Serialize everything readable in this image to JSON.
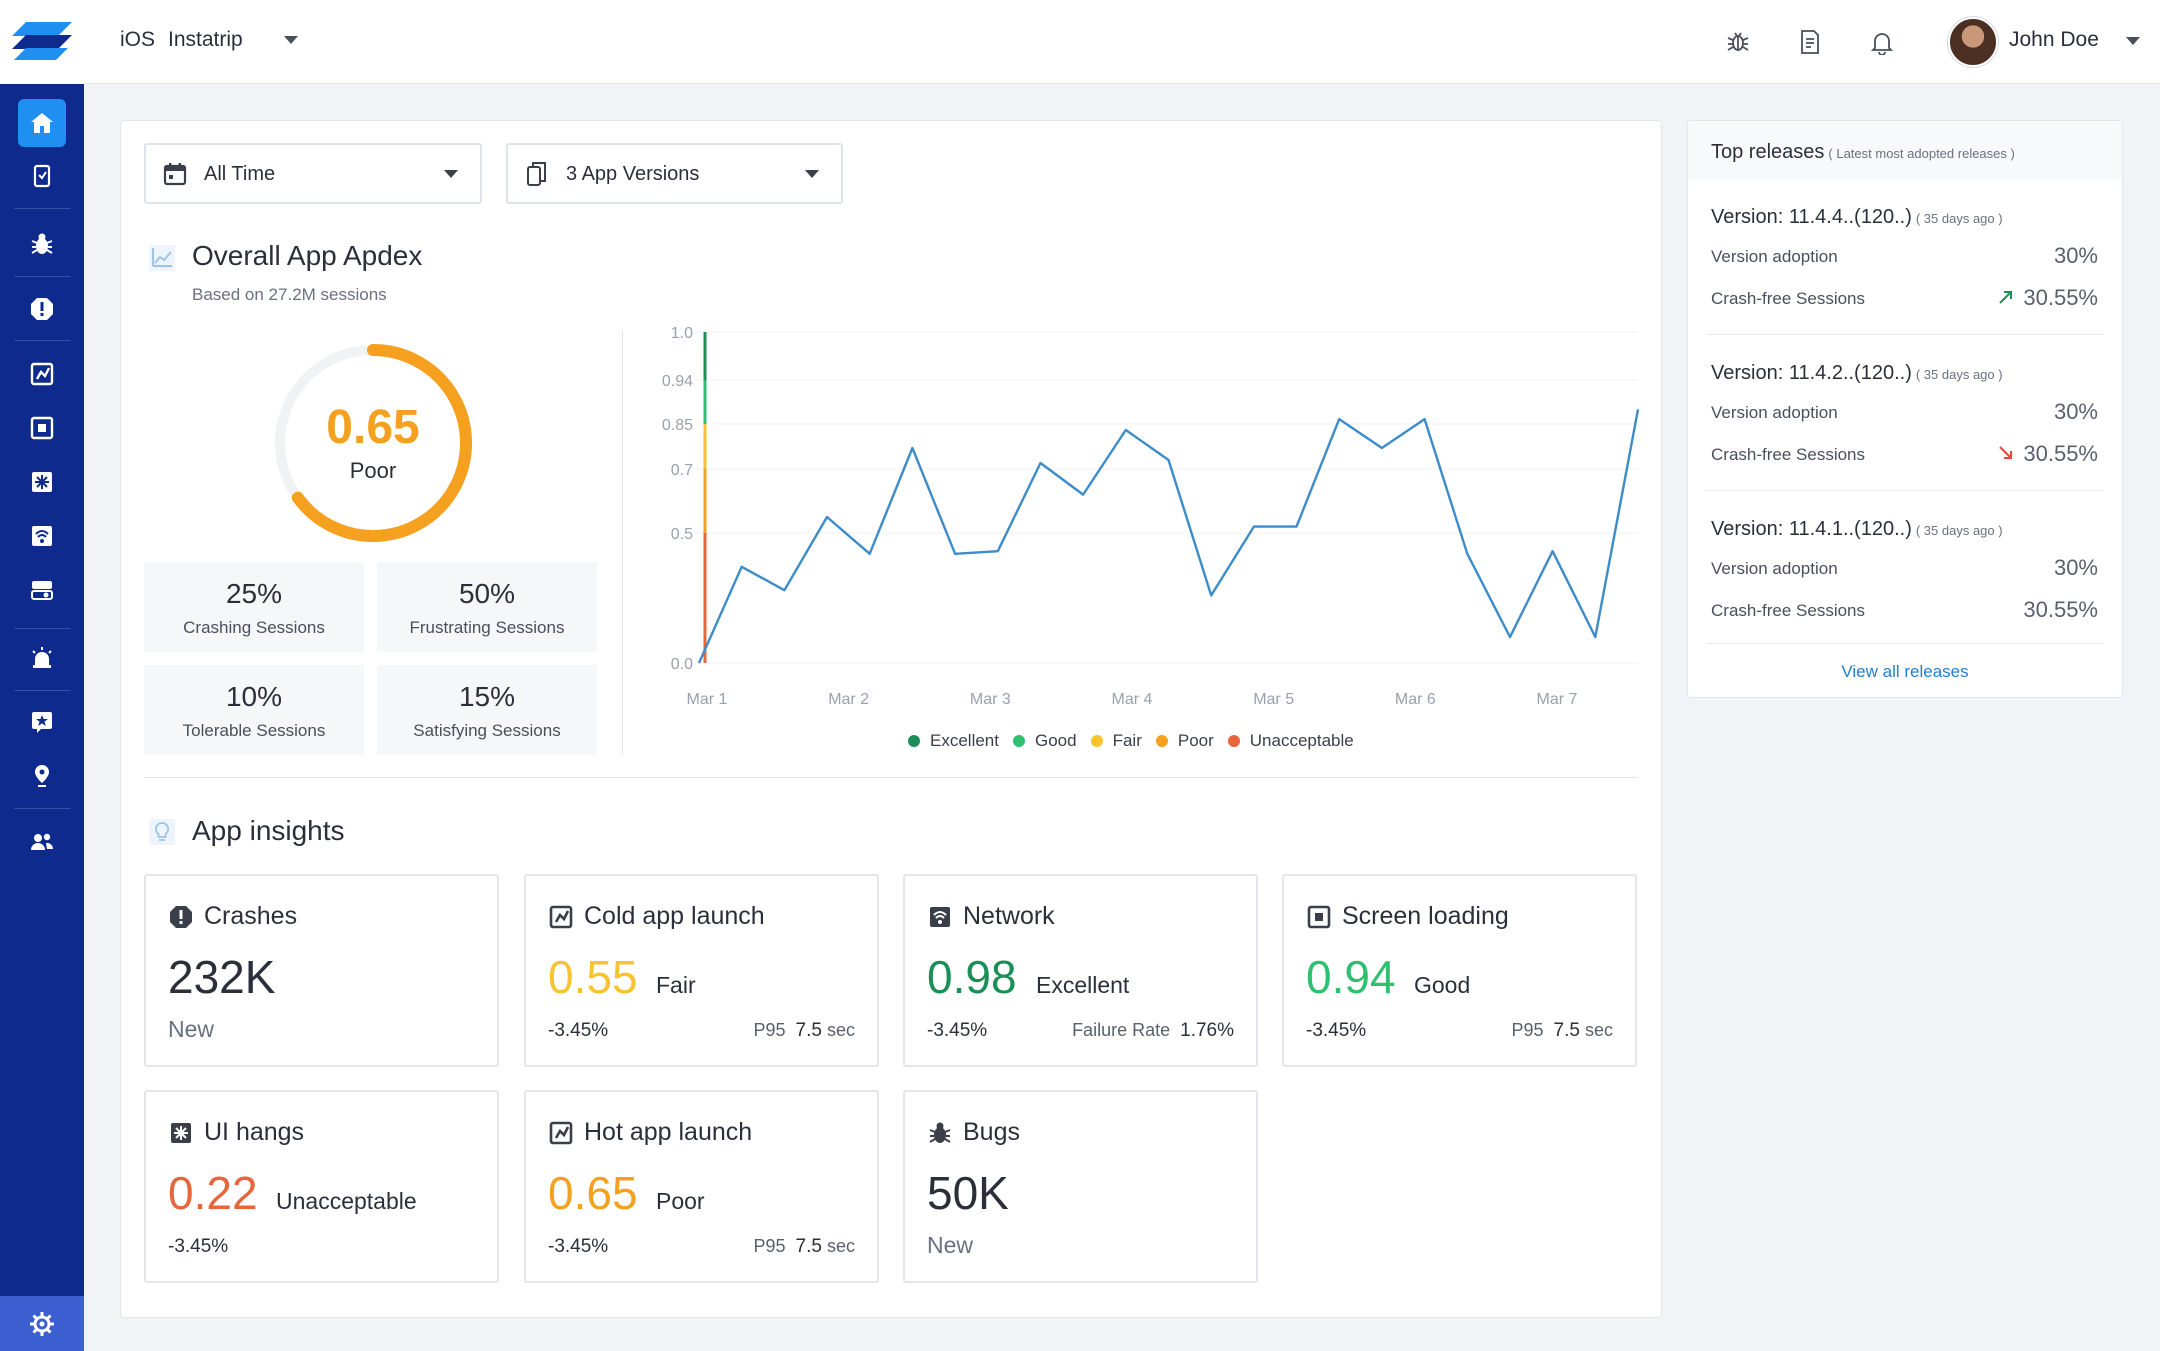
{
  "colors": {
    "excellent": "#1a8f57",
    "good": "#2fbf71",
    "fair": "#f7c331",
    "poor": "#f5a01f",
    "unacceptable": "#e8643b",
    "line": "#3c8cc9",
    "sidebar": "#0d2a8c",
    "accent": "#1f8ff2"
  },
  "sidebar": {
    "items": [
      "home-icon",
      "device-icon",
      "bug-icon",
      "alert-icon",
      "launch-icon",
      "screen-icon",
      "hang-icon",
      "network-icon",
      "toggle-icon",
      "alarm-icon",
      "star-icon",
      "pin-icon",
      "users-icon"
    ],
    "active": "home-icon",
    "settings_icon": "gear-icon"
  },
  "topbar": {
    "platform": "iOS",
    "app_name": "Instatrip",
    "icons": [
      "bug-outline-icon",
      "document-icon",
      "bell-icon"
    ],
    "user_name": "John Doe"
  },
  "filters": {
    "time": "All Time",
    "versions": "3 App Versions"
  },
  "apdex": {
    "title": "Overall App Apdex",
    "subtitle": "Based on 27.2M sessions",
    "score": "0.65",
    "score_value": 0.65,
    "rating": "Poor",
    "stats": [
      {
        "value": "25%",
        "label": "Crashing Sessions"
      },
      {
        "value": "50%",
        "label": "Frustrating Sessions"
      },
      {
        "value": "10%",
        "label": "Tolerable Sessions"
      },
      {
        "value": "15%",
        "label": "Satisfying Sessions"
      }
    ]
  },
  "chart_data": {
    "type": "line",
    "title": "",
    "xlabel": "",
    "ylabel": "",
    "x_ticks": [
      "Mar 1",
      "Mar 2",
      "Mar 3",
      "Mar 4",
      "Mar 5",
      "Mar 6",
      "Mar 7"
    ],
    "y_ticks": [
      "1.0",
      "0.94",
      "0.85",
      "0.7",
      "0.5",
      "0.0"
    ],
    "grid": true,
    "legend_position": "bottom",
    "legend": [
      "Excellent",
      "Good",
      "Fair",
      "Poor",
      "Unacceptable"
    ],
    "series": [
      {
        "values": [
          0.0,
          0.37,
          0.28,
          0.55,
          0.42,
          0.77,
          0.42,
          0.43,
          0.72,
          0.62,
          0.83,
          0.73,
          0.26,
          0.52,
          0.52,
          0.86,
          0.77,
          0.86,
          0.42,
          0.1,
          0.43,
          0.1,
          0.88
        ]
      }
    ]
  },
  "insights": {
    "title": "App insights",
    "cards": [
      {
        "icon": "alert-icon",
        "title": "Crashes",
        "value": "232K",
        "footer_left": "New"
      },
      {
        "icon": "launch-icon",
        "title": "Cold app launch",
        "value": "0.55",
        "rating": "Fair",
        "change": "-3.45%",
        "metric_label": "P95",
        "metric_value": "7.5",
        "metric_unit": "sec"
      },
      {
        "icon": "network-icon",
        "title": "Network",
        "value": "0.98",
        "rating": "Excellent",
        "change": "-3.45%",
        "metric_label": "Failure Rate",
        "metric_value": "1.76%",
        "metric_unit": ""
      },
      {
        "icon": "screen-icon",
        "title": "Screen loading",
        "value": "0.94",
        "rating": "Good",
        "change": "-3.45%",
        "metric_label": "P95",
        "metric_value": "7.5",
        "metric_unit": "sec"
      },
      {
        "icon": "hang-icon",
        "title": "UI hangs",
        "value": "0.22",
        "rating": "Unacceptable",
        "change": "-3.45%"
      },
      {
        "icon": "launch-icon",
        "title": "Hot app launch",
        "value": "0.65",
        "rating": "Poor",
        "change": "-3.45%",
        "metric_label": "P95",
        "metric_value": "7.5",
        "metric_unit": "sec"
      },
      {
        "icon": "bug-icon",
        "title": "Bugs",
        "value": "50K",
        "footer_left": "New"
      }
    ]
  },
  "releases": {
    "title": "Top releases",
    "hint": "( Latest most adopted releases )",
    "items": [
      {
        "version": "Version: 11.4.4..(120..)",
        "ago": "( 35 days ago )",
        "adoption_label": "Version adoption",
        "adoption": "30%",
        "crash_label": "Crash-free Sessions",
        "crash_free": "30.55%",
        "trend": "up-arrow-icon"
      },
      {
        "version": "Version: 11.4.2..(120..)",
        "ago": "( 35 days ago )",
        "adoption_label": "Version adoption",
        "adoption": "30%",
        "crash_label": "Crash-free Sessions",
        "crash_free": "30.55%",
        "trend": "down-arrow-icon"
      },
      {
        "version": "Version: 11.4.1..(120..)",
        "ago": "( 35 days ago )",
        "adoption_label": "Version adoption",
        "adoption": "30%",
        "crash_label": "Crash-free Sessions",
        "crash_free": "30.55%",
        "trend": "none"
      }
    ],
    "link": "View all releases"
  }
}
